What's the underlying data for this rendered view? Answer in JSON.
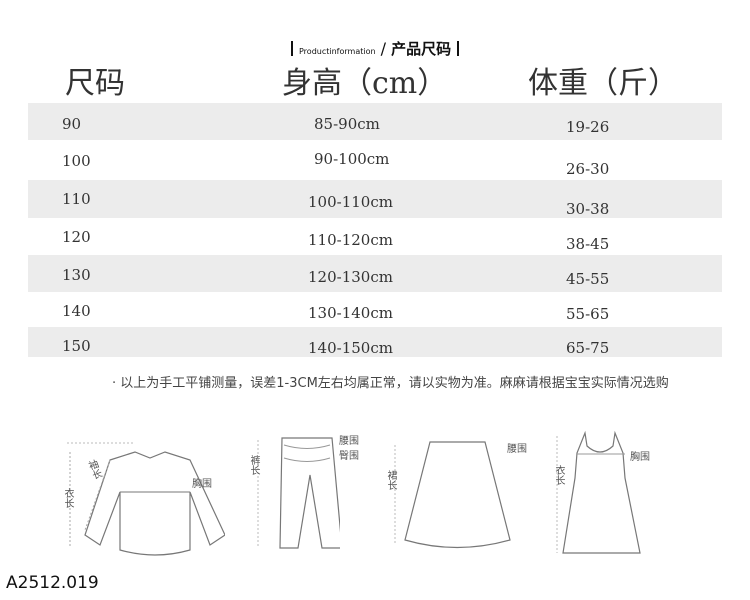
{
  "banner": {
    "en": "Productinformation",
    "sep": "/",
    "cn": "产品尺码"
  },
  "table": {
    "headers": [
      "尺码",
      "身高（cm）",
      "体重（斤）"
    ],
    "rows": [
      [
        "90",
        "85-90cm",
        "19-26"
      ],
      [
        "100",
        "90-100cm",
        "26-30"
      ],
      [
        "110",
        "100-110cm",
        "30-38"
      ],
      [
        "120",
        "110-120cm",
        "38-45"
      ],
      [
        "130",
        "120-130cm",
        "45-55"
      ],
      [
        "140",
        "130-140cm",
        "55-65"
      ],
      [
        "150",
        "140-150cm",
        "65-75"
      ]
    ]
  },
  "note": "· 以上为手工平铺测量，误差1-3CM左右均属正常，请以实物为准。麻麻请根据宝宝实际情况选购",
  "diagrams": {
    "top": {
      "length": "衣长",
      "sleeve": "袖长",
      "chest": "胸围"
    },
    "pants": {
      "length": "裤长",
      "waist": "腰围",
      "hip": "臀围"
    },
    "skirt": {
      "length": "裙长",
      "waist": "腰围"
    },
    "dress": {
      "length": "衣长",
      "chest": "胸围"
    }
  },
  "product_code": "A2512.019"
}
